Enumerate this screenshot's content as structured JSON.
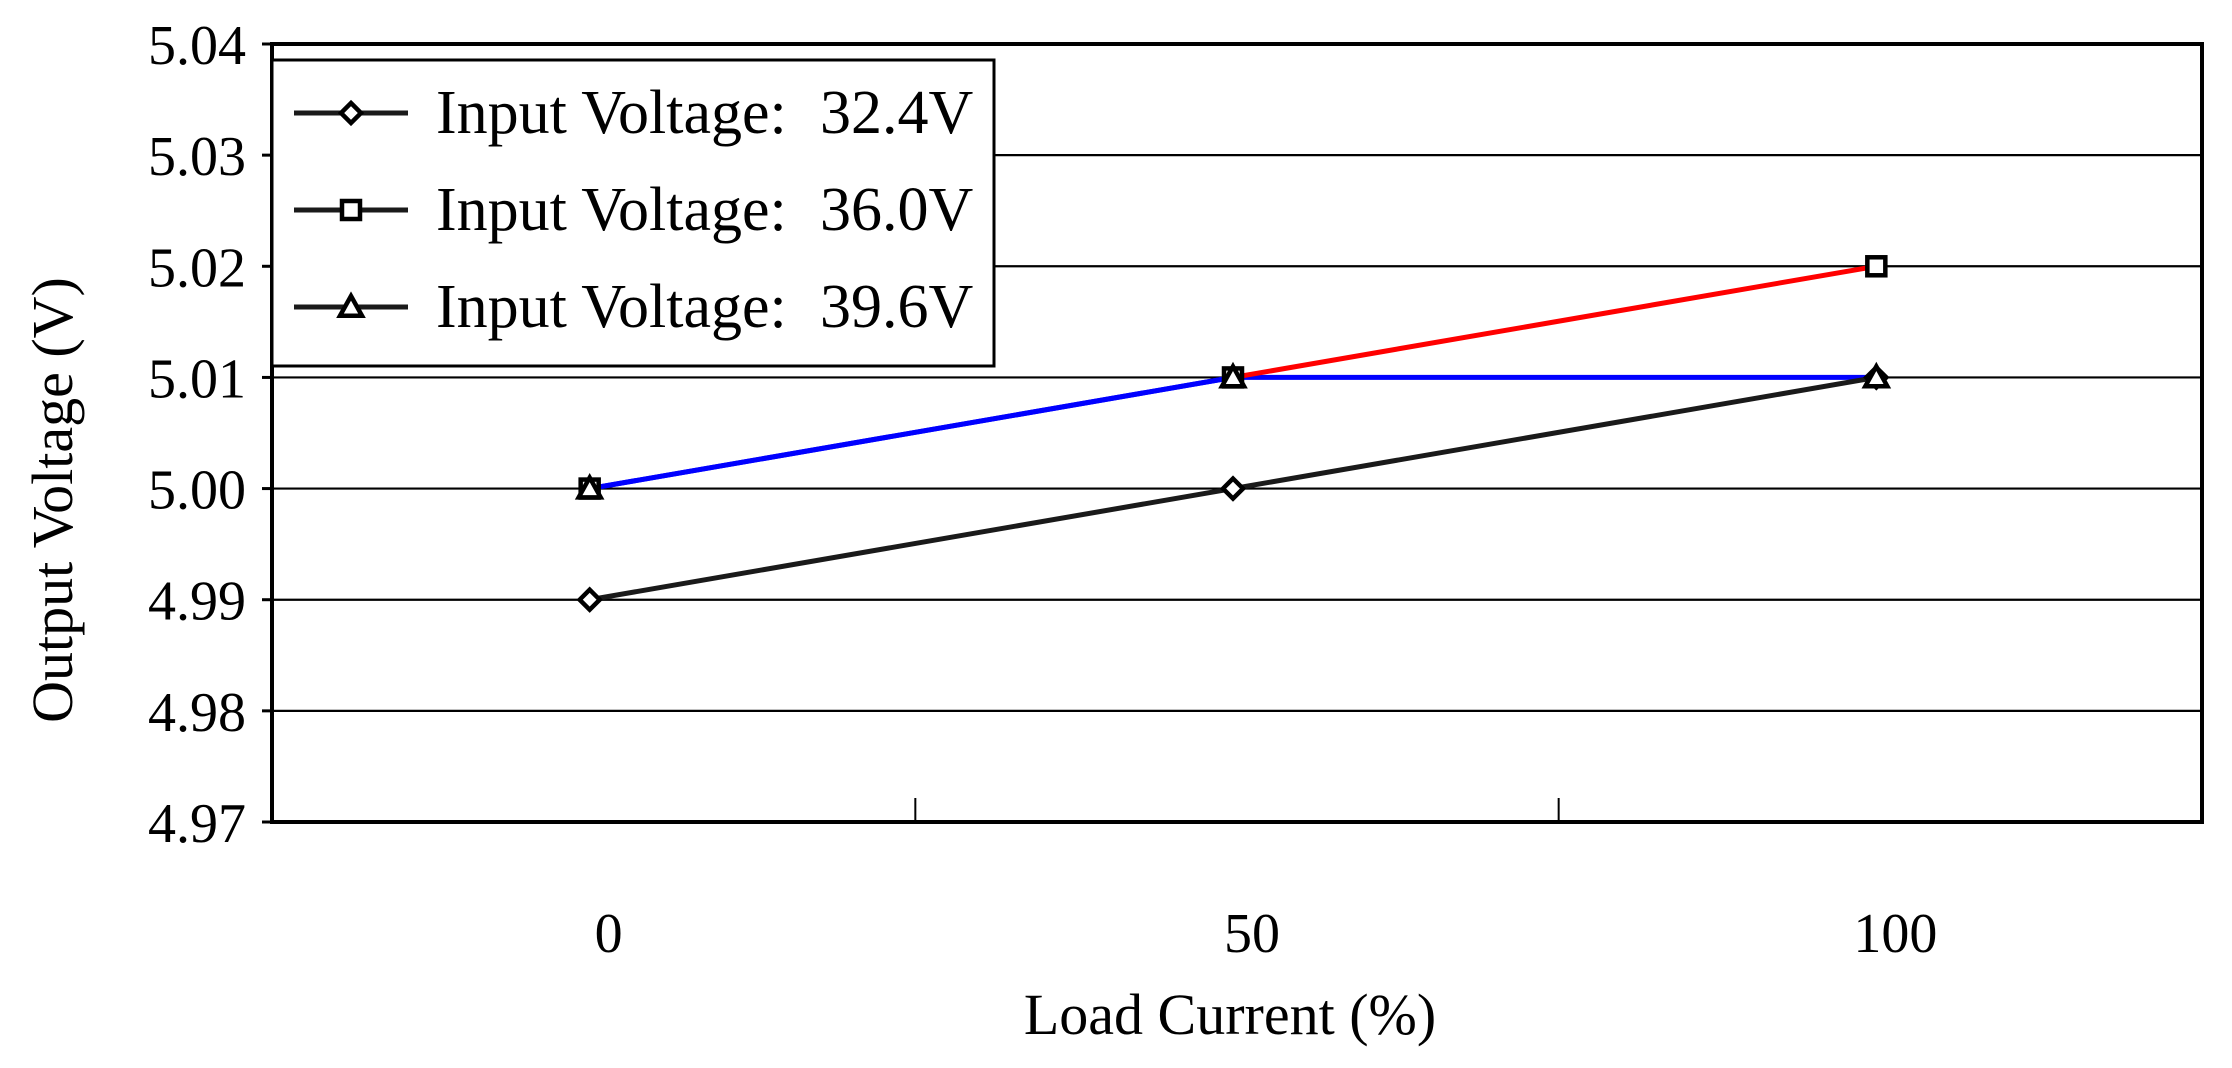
{
  "chart_data": {
    "type": "line",
    "title": "",
    "xlabel": "Load Current (%)",
    "ylabel": "Output Voltage (V)",
    "categories": [
      "0",
      "50",
      "100"
    ],
    "x_tick_labels": [
      "0",
      "50",
      "100"
    ],
    "y_tick_labels": [
      "4.97",
      "4.98",
      "4.99",
      "5.00",
      "5.01",
      "5.02",
      "5.03",
      "5.04"
    ],
    "ylim": [
      4.97,
      5.04
    ],
    "grid": true,
    "legend_position": "top-left",
    "series": [
      {
        "name": "Input Voltage: 32.4V",
        "legend_prefix": "Input Voltage:",
        "legend_value": "32.4V",
        "marker": "diamond",
        "line_colors": [
          "#1a1a1a",
          "#1a1a1a"
        ],
        "values": [
          4.99,
          5.0,
          5.01
        ]
      },
      {
        "name": "Input Voltage: 36.0V",
        "legend_prefix": "Input Voltage:",
        "legend_value": "36.0V",
        "marker": "square",
        "line_colors": [
          "#0000ff",
          "#ff0000"
        ],
        "values": [
          5.0,
          5.01,
          5.02
        ]
      },
      {
        "name": "Input Voltage: 39.6V",
        "legend_prefix": "Input Voltage:",
        "legend_value": "39.6V",
        "marker": "triangle",
        "line_colors": [
          "#0000ff",
          "#0000ff"
        ],
        "values": [
          5.0,
          5.01,
          5.01
        ]
      }
    ]
  }
}
